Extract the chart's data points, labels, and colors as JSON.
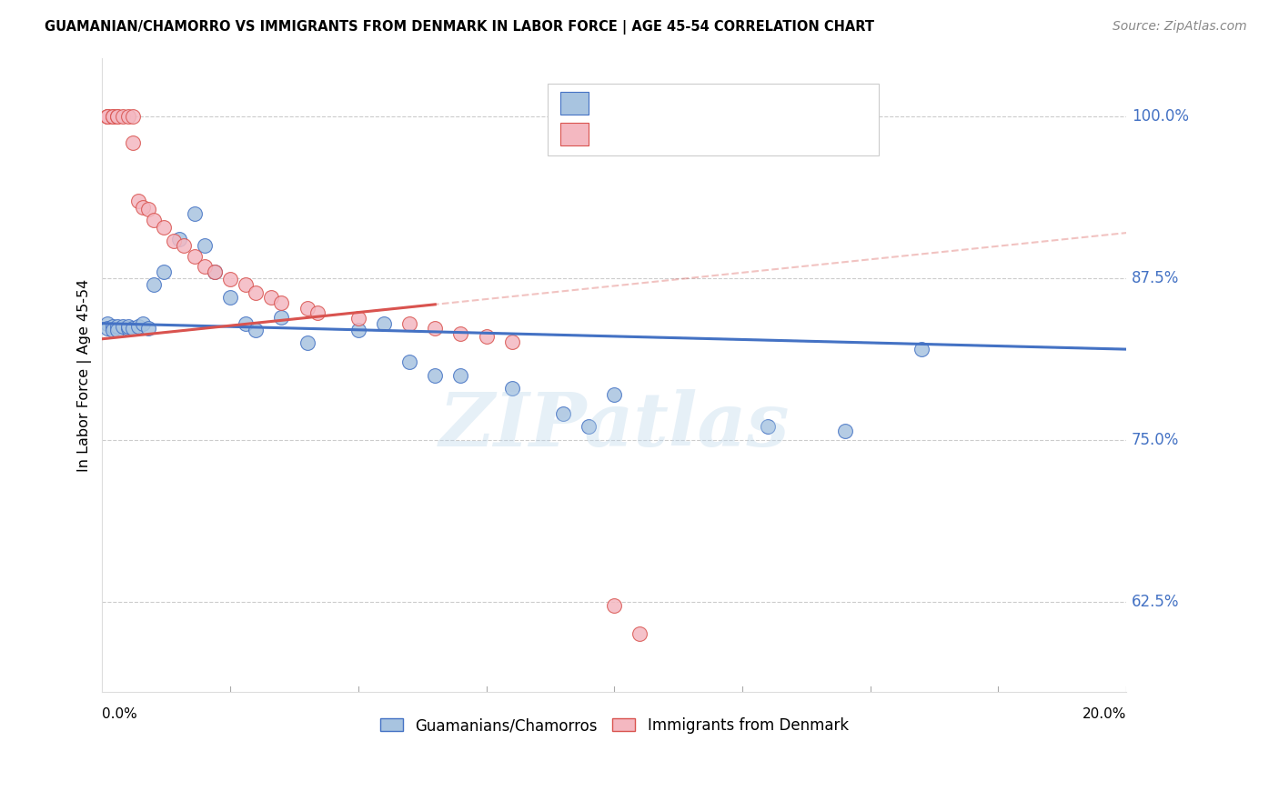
{
  "title": "GUAMANIAN/CHAMORRO VS IMMIGRANTS FROM DENMARK IN LABOR FORCE | AGE 45-54 CORRELATION CHART",
  "source": "Source: ZipAtlas.com",
  "ylabel": "In Labor Force | Age 45-54",
  "yticks": [
    0.625,
    0.75,
    0.875,
    1.0
  ],
  "ytick_labels": [
    "62.5%",
    "75.0%",
    "87.5%",
    "100.0%"
  ],
  "xmin": 0.0,
  "xmax": 0.2,
  "ymin": 0.555,
  "ymax": 1.045,
  "blue_color": "#a8c4e0",
  "blue_line_color": "#4472c4",
  "pink_color": "#f4b8c1",
  "pink_line_color": "#d9534f",
  "blue_label": "Guamanians/Chamorros",
  "pink_label": "Immigrants from Denmark",
  "background_color": "#ffffff",
  "grid_color": "#cccccc",
  "watermark": "ZIPatlas",
  "blue_x": [
    0.001,
    0.001,
    0.002,
    0.002,
    0.003,
    0.003,
    0.004,
    0.005,
    0.005,
    0.006,
    0.007,
    0.008,
    0.009,
    0.01,
    0.012,
    0.015,
    0.018,
    0.02,
    0.022,
    0.025,
    0.028,
    0.03,
    0.035,
    0.04,
    0.05,
    0.055,
    0.06,
    0.065,
    0.07,
    0.08,
    0.09,
    0.095,
    0.1,
    0.13,
    0.145,
    0.16
  ],
  "blue_y": [
    0.84,
    0.836,
    0.838,
    0.835,
    0.838,
    0.835,
    0.838,
    0.836,
    0.838,
    0.836,
    0.838,
    0.84,
    0.836,
    0.87,
    0.88,
    0.905,
    0.925,
    0.9,
    0.88,
    0.86,
    0.84,
    0.835,
    0.845,
    0.825,
    0.835,
    0.84,
    0.81,
    0.8,
    0.8,
    0.79,
    0.77,
    0.76,
    0.785,
    0.76,
    0.757,
    0.82
  ],
  "pink_x": [
    0.001,
    0.001,
    0.001,
    0.002,
    0.002,
    0.003,
    0.003,
    0.004,
    0.005,
    0.006,
    0.006,
    0.007,
    0.008,
    0.009,
    0.01,
    0.012,
    0.014,
    0.016,
    0.018,
    0.02,
    0.022,
    0.025,
    0.028,
    0.03,
    0.033,
    0.035,
    0.04,
    0.042,
    0.05,
    0.06,
    0.065,
    0.07,
    0.075,
    0.08,
    0.1,
    0.105
  ],
  "pink_y": [
    1.0,
    1.0,
    1.0,
    1.0,
    1.0,
    1.0,
    1.0,
    1.0,
    1.0,
    1.0,
    0.98,
    0.935,
    0.93,
    0.928,
    0.92,
    0.914,
    0.904,
    0.9,
    0.892,
    0.884,
    0.88,
    0.874,
    0.87,
    0.864,
    0.86,
    0.856,
    0.852,
    0.848,
    0.844,
    0.84,
    0.836,
    0.832,
    0.83,
    0.826,
    0.622,
    0.6
  ]
}
